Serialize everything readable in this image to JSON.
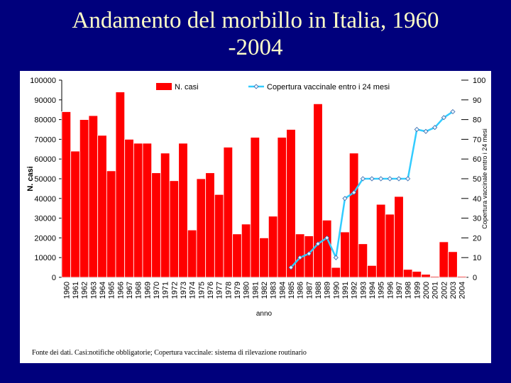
{
  "chart_data": {
    "type": "bar+line",
    "title": "Andamento del morbillo in Italia, 1960 -2004",
    "xlabel": "anno",
    "ylabel": "N. casi",
    "y2label": "Copertura vaccinale entro i 24 mesi",
    "source": "Fonte dei dati. Casi:notifiche obbligatorie; Copertura vaccinale: sistema di rilevazione routinario",
    "categories": [
      "1960",
      "1961",
      "1962",
      "1963",
      "1964",
      "1965",
      "1966",
      "1967",
      "1968",
      "1969",
      "1970",
      "1971",
      "1972",
      "1973",
      "1974",
      "1975",
      "1976",
      "1977",
      "1978",
      "1979",
      "1980",
      "1981",
      "1982",
      "1983",
      "1984",
      "1985",
      "1986",
      "1987",
      "1988",
      "1989",
      "1990",
      "1991",
      "1992",
      "1993",
      "1994",
      "1995",
      "1996",
      "1997",
      "1998",
      "1999",
      "2000",
      "2001",
      "2002",
      "2003",
      "2004"
    ],
    "series": [
      {
        "name": "N. casi",
        "type": "bar",
        "color": "#ff0000",
        "values": [
          84000,
          64000,
          80000,
          82000,
          72000,
          54000,
          94000,
          70000,
          68000,
          68000,
          53000,
          63000,
          49000,
          68000,
          24000,
          50000,
          53000,
          42000,
          66000,
          22000,
          27000,
          71000,
          20000,
          31000,
          71000,
          75000,
          22000,
          21000,
          88000,
          29000,
          5000,
          23000,
          63000,
          17000,
          6000,
          37000,
          32000,
          41000,
          4000,
          3000,
          1500,
          500,
          18000,
          13000,
          500
        ]
      },
      {
        "name": "Copertura vaccinale entro i 24 mesi",
        "type": "line",
        "axis": "y2",
        "color": "#33ccff",
        "values": [
          null,
          null,
          null,
          null,
          null,
          null,
          null,
          null,
          null,
          null,
          null,
          null,
          null,
          null,
          null,
          null,
          null,
          null,
          null,
          null,
          null,
          null,
          null,
          null,
          null,
          5,
          10,
          12,
          17,
          20,
          10,
          40,
          43,
          50,
          50,
          50,
          50,
          50,
          50,
          75,
          74,
          76,
          81,
          84,
          null
        ]
      }
    ],
    "ylim": [
      0,
      100000
    ],
    "yticks": [
      0,
      10000,
      20000,
      30000,
      40000,
      50000,
      60000,
      70000,
      80000,
      90000,
      100000
    ],
    "y2lim": [
      0,
      100
    ],
    "y2ticks": [
      0,
      10,
      20,
      30,
      40,
      50,
      60,
      70,
      80,
      90,
      100
    ],
    "grid": false,
    "legend": "top"
  }
}
